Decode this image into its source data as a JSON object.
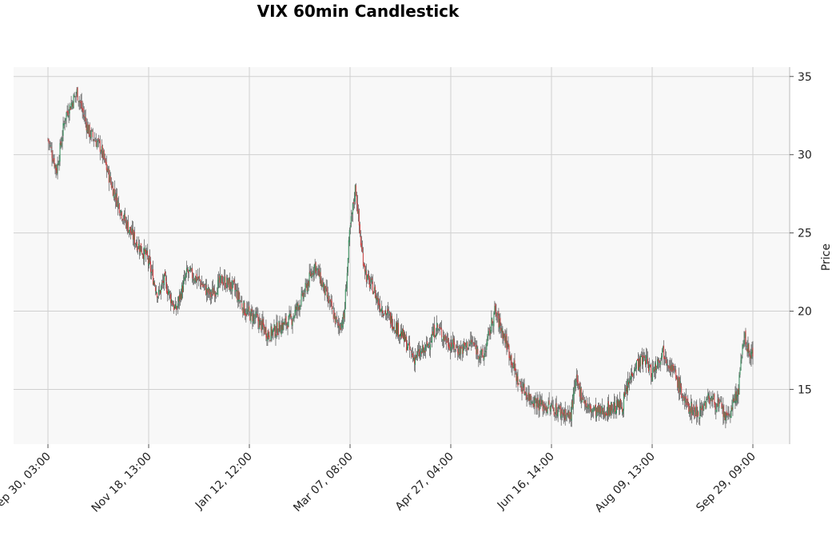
{
  "chart_data": {
    "type": "candlestick",
    "title": "VIX 60min Candlestick",
    "xlabel": "",
    "ylabel": "Price",
    "ylim": [
      11.5,
      35.6
    ],
    "y_ticks": [
      15,
      20,
      25,
      30,
      35
    ],
    "x_tick_labels": [
      "Sep 30, 03:00",
      "Nov 18, 13:00",
      "Jan 12, 12:00",
      "Mar 07, 08:00",
      "Apr 27, 04:00",
      "Jun 16, 14:00",
      "Aug 09, 13:00",
      "Sep 29, 09:00"
    ],
    "grid": true,
    "y_axis_position": "right",
    "colors": {
      "up": "#2e8b57",
      "down": "#cd3b3b",
      "plot_bg": "#f8f8f8",
      "grid": "#d0d0d0"
    },
    "close_path": [
      [
        0,
        31
      ],
      [
        3,
        29
      ],
      [
        6,
        32.5
      ],
      [
        10,
        34
      ],
      [
        14,
        31.5
      ],
      [
        18,
        30.5
      ],
      [
        22,
        28
      ],
      [
        26,
        26
      ],
      [
        30,
        24.5
      ],
      [
        34,
        23.5
      ],
      [
        38,
        21
      ],
      [
        40,
        22
      ],
      [
        44,
        20
      ],
      [
        48,
        22.5
      ],
      [
        52,
        22
      ],
      [
        56,
        21
      ],
      [
        60,
        22
      ],
      [
        64,
        21.5
      ],
      [
        68,
        20
      ],
      [
        72,
        19.5
      ],
      [
        76,
        18.5
      ],
      [
        80,
        19
      ],
      [
        84,
        19.5
      ],
      [
        88,
        21
      ],
      [
        92,
        23
      ],
      [
        96,
        21
      ],
      [
        100,
        19
      ],
      [
        102,
        19.5
      ],
      [
        104,
        25
      ],
      [
        106,
        28
      ],
      [
        108,
        24
      ],
      [
        110,
        22
      ],
      [
        112,
        21.5
      ],
      [
        114,
        20.5
      ],
      [
        118,
        19.5
      ],
      [
        122,
        18.5
      ],
      [
        126,
        17
      ],
      [
        130,
        17.5
      ],
      [
        134,
        19
      ],
      [
        138,
        18
      ],
      [
        142,
        17.5
      ],
      [
        146,
        18
      ],
      [
        150,
        17
      ],
      [
        154,
        20
      ],
      [
        158,
        18
      ],
      [
        162,
        15.5
      ],
      [
        166,
        14.5
      ],
      [
        170,
        14
      ],
      [
        174,
        13.8
      ],
      [
        178,
        13.5
      ],
      [
        180,
        13.2
      ],
      [
        182,
        15.5
      ],
      [
        186,
        13.8
      ],
      [
        190,
        13.5
      ],
      [
        194,
        13.8
      ],
      [
        198,
        14
      ],
      [
        202,
        16.5
      ],
      [
        206,
        17
      ],
      [
        208,
        16
      ],
      [
        212,
        17.5
      ],
      [
        216,
        16
      ],
      [
        220,
        14
      ],
      [
        224,
        13.5
      ],
      [
        228,
        14.5
      ],
      [
        232,
        13.8
      ],
      [
        234,
        13
      ],
      [
        236,
        14
      ],
      [
        238,
        15
      ],
      [
        240,
        18.5
      ],
      [
        242,
        17
      ],
      [
        243,
        17.5
      ]
    ]
  }
}
